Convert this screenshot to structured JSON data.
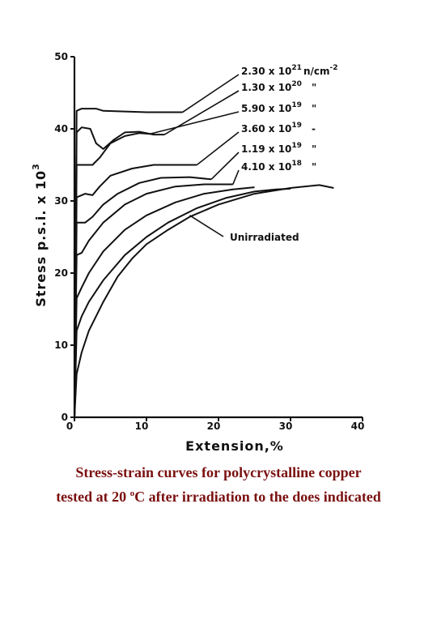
{
  "chart_data": {
    "type": "line",
    "title": "",
    "xlabel": "Extension,%",
    "ylabel": "Stress p.s.i. x 10",
    "ylabel_exponent": "3",
    "xlim": [
      0,
      40
    ],
    "ylim": [
      0,
      50
    ],
    "x_ticks": [
      0,
      10,
      20,
      30,
      40
    ],
    "y_ticks": [
      0,
      10,
      20,
      30,
      40,
      50
    ],
    "grid": false,
    "legend_position": "top-right",
    "series": [
      {
        "name": "2.30 x 10²¹ n/cm⁻²",
        "legend_main": "2.30 x 10",
        "legend_exp": "21",
        "legend_unit": "n/cm",
        "legend_unit_exp": "-2",
        "points": [
          [
            0,
            0
          ],
          [
            0.3,
            42.5
          ],
          [
            1,
            42.8
          ],
          [
            3,
            42.8
          ],
          [
            4,
            42.5
          ],
          [
            10,
            42.3
          ],
          [
            15,
            42.3
          ]
        ]
      },
      {
        "name": "1.30 x 10²⁰",
        "legend_main": "1.30 x 10",
        "legend_exp": "20",
        "legend_unit": "\"",
        "points": [
          [
            0,
            0
          ],
          [
            0.3,
            39.5
          ],
          [
            1,
            40.2
          ],
          [
            2.2,
            40
          ],
          [
            3,
            38
          ],
          [
            4,
            37.2
          ],
          [
            5.5,
            38.5
          ],
          [
            7,
            39.5
          ],
          [
            9,
            39.6
          ],
          [
            11,
            39.2
          ],
          [
            12.5,
            39.2
          ]
        ]
      },
      {
        "name": "5.90 x 10¹⁹",
        "legend_main": "5.90 x 10",
        "legend_exp": "19",
        "legend_unit": "\"",
        "points": [
          [
            0,
            0
          ],
          [
            0.3,
            35
          ],
          [
            2.5,
            35
          ],
          [
            3.5,
            36
          ],
          [
            5,
            38
          ],
          [
            7,
            39
          ],
          [
            9,
            39.4
          ],
          [
            10.5,
            39.3
          ]
        ]
      },
      {
        "name": "3.60 x 10¹⁹",
        "legend_main": "3.60 x 10",
        "legend_exp": "19",
        "legend_unit": "-",
        "points": [
          [
            0,
            0
          ],
          [
            0.3,
            30.5
          ],
          [
            1.5,
            31
          ],
          [
            2.5,
            30.8
          ],
          [
            3.5,
            32
          ],
          [
            5,
            33.5
          ],
          [
            8,
            34.5
          ],
          [
            11,
            35
          ],
          [
            14,
            35
          ],
          [
            17,
            35
          ]
        ]
      },
      {
        "name": "1.19 x 10¹⁹",
        "legend_main": "1.19 x 10",
        "legend_exp": "19",
        "legend_unit": "\"",
        "points": [
          [
            0,
            0
          ],
          [
            0.3,
            27
          ],
          [
            1.5,
            27
          ],
          [
            2.5,
            27.8
          ],
          [
            4,
            29.5
          ],
          [
            6,
            31
          ],
          [
            9,
            32.5
          ],
          [
            12,
            33.2
          ],
          [
            16,
            33.3
          ],
          [
            19,
            33
          ]
        ]
      },
      {
        "name": "4.10 x 10¹⁸",
        "legend_main": "4.10 x 10",
        "legend_exp": "18",
        "legend_unit": "\"",
        "points": [
          [
            0,
            0
          ],
          [
            0.3,
            22.5
          ],
          [
            1,
            22.8
          ],
          [
            2,
            24.5
          ],
          [
            4,
            27
          ],
          [
            7,
            29.5
          ],
          [
            10,
            31
          ],
          [
            14,
            32
          ],
          [
            18,
            32.3
          ],
          [
            22,
            32.3
          ]
        ]
      },
      {
        "name": "Unirradiated",
        "legend_main": "Unirradiated",
        "points": [
          [
            0,
            0
          ],
          [
            0.3,
            6
          ],
          [
            1,
            9
          ],
          [
            2,
            12
          ],
          [
            4,
            16
          ],
          [
            6,
            19.5
          ],
          [
            8,
            22
          ],
          [
            10,
            24
          ],
          [
            13,
            26
          ],
          [
            16,
            27.8
          ],
          [
            20,
            29.5
          ],
          [
            25,
            31
          ],
          [
            30,
            31.8
          ],
          [
            34,
            32.2
          ],
          [
            36,
            31.8
          ]
        ]
      }
    ],
    "extra_curves": [
      {
        "points": [
          [
            0,
            0
          ],
          [
            0.3,
            12
          ],
          [
            1,
            14
          ],
          [
            2,
            16
          ],
          [
            4,
            19
          ],
          [
            7,
            22.5
          ],
          [
            10,
            25
          ],
          [
            13,
            27
          ],
          [
            17,
            29
          ],
          [
            21,
            30.4
          ],
          [
            25,
            31.3
          ],
          [
            28,
            31.6
          ],
          [
            30,
            31.7
          ]
        ]
      },
      {
        "points": [
          [
            0,
            0
          ],
          [
            0.3,
            16.5
          ],
          [
            1,
            18
          ],
          [
            2,
            20
          ],
          [
            4,
            23
          ],
          [
            7,
            26
          ],
          [
            10,
            28
          ],
          [
            14,
            29.8
          ],
          [
            18,
            31
          ],
          [
            22,
            31.6
          ],
          [
            25,
            31.9
          ]
        ]
      }
    ]
  },
  "caption": {
    "line1": "Stress-strain curves for polycrystalline copper",
    "line2_before": "tested at 20 ",
    "line2_sup": "o",
    "line2_after": "C after irradiation to the does indicated"
  }
}
